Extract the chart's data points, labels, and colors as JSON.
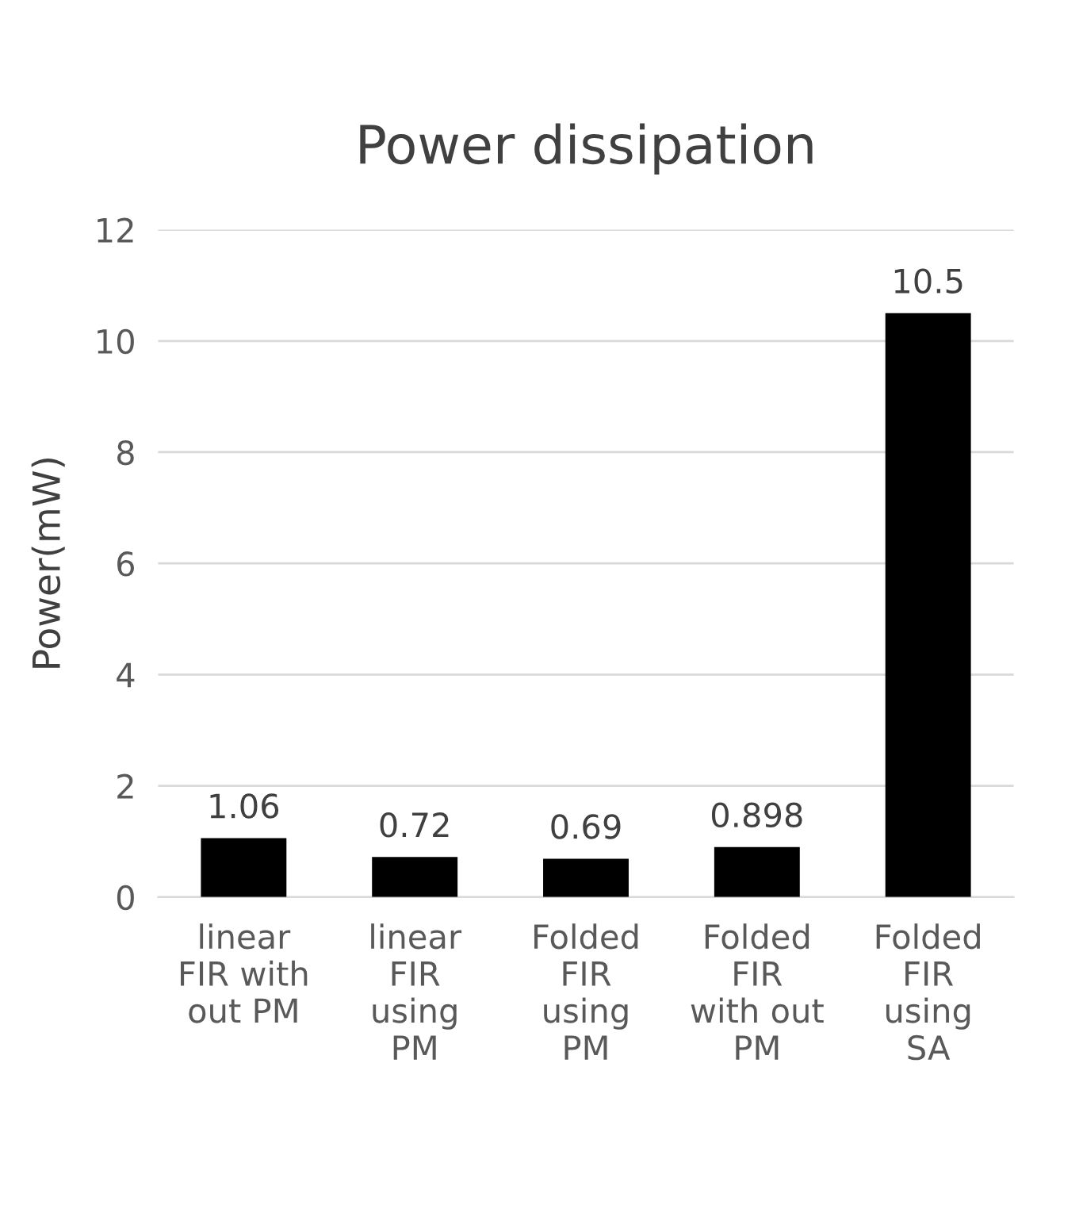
{
  "chart_data": {
    "type": "bar",
    "title": "Power dissipation",
    "ylabel": "Power(mW)",
    "categories": [
      "linear\nFIR with\nout PM",
      "linear\nFIR\nusing\nPM",
      "Folded\nFIR\nusing\nPM",
      "Folded\nFIR\nwith out\nPM",
      "Folded\nFIR\nusing\nSA"
    ],
    "values": [
      1.06,
      0.72,
      0.69,
      0.898,
      10.5
    ],
    "color": "#000000",
    "ylim": [
      0,
      12
    ],
    "yticks": [
      0,
      2,
      4,
      6,
      8,
      10,
      12
    ],
    "grid": "y",
    "data_labels": true,
    "legend": false
  }
}
